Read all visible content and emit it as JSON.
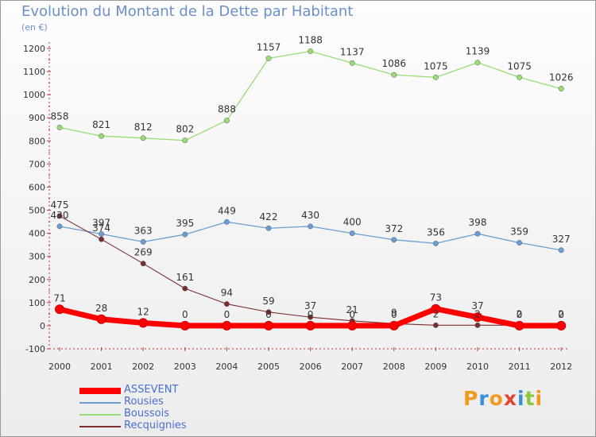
{
  "title": "Evolution du Montant de la Dette par Habitant",
  "subtitle": "(en €)",
  "logo": {
    "text": "Proxiti",
    "colors": [
      "#f29a1f",
      "#3a8fd8",
      "#f29a1f",
      "#e0462f",
      "#3a8fd8",
      "#8cc63f",
      "#f29a1f"
    ]
  },
  "chart_data": {
    "type": "line",
    "title": "Evolution du Montant de la Dette par Habitant",
    "subtitle": "(en €)",
    "xlabel": "",
    "ylabel": "",
    "x": [
      "2000",
      "2001",
      "2002",
      "2003",
      "2004",
      "2005",
      "2006",
      "2007",
      "2008",
      "2009",
      "2010",
      "2011",
      "2012"
    ],
    "ylim": [
      -100,
      1200
    ],
    "yticks": [
      -100,
      0,
      100,
      200,
      300,
      400,
      500,
      600,
      700,
      800,
      900,
      1000,
      1100,
      1200
    ],
    "grid": false,
    "legend": "bottom-left",
    "series": [
      {
        "name": "ASSEVENT",
        "color": "#ff0000",
        "width": 7,
        "values": [
          71,
          28,
          12,
          0,
          0,
          0,
          0,
          0,
          0,
          73,
          37,
          0,
          0
        ]
      },
      {
        "name": "Rousies",
        "color": "#6a9ed3",
        "width": 1.3,
        "values": [
          430,
          397,
          363,
          395,
          449,
          422,
          430,
          400,
          372,
          356,
          398,
          359,
          327
        ]
      },
      {
        "name": "Boussois",
        "color": "#99dd77",
        "width": 1.3,
        "values": [
          858,
          821,
          812,
          802,
          888,
          1157,
          1188,
          1137,
          1086,
          1075,
          1139,
          1075,
          1026
        ]
      },
      {
        "name": "Recquignies",
        "color": "#7a2e2e",
        "width": 1.1,
        "values": [
          475,
          374,
          269,
          161,
          94,
          59,
          37,
          21,
          9,
          2,
          2,
          2,
          2
        ]
      }
    ],
    "point_labels": [
      {
        "series": 0,
        "index": 0,
        "text": "71"
      },
      {
        "series": 0,
        "index": 1,
        "text": "28"
      },
      {
        "series": 0,
        "index": 2,
        "text": "12"
      },
      {
        "series": 0,
        "index": 3,
        "text": "0"
      },
      {
        "series": 0,
        "index": 4,
        "text": "0"
      },
      {
        "series": 0,
        "index": 5,
        "text": "0"
      },
      {
        "series": 0,
        "index": 6,
        "text": "0"
      },
      {
        "series": 0,
        "index": 7,
        "text": "0"
      },
      {
        "series": 0,
        "index": 8,
        "text": "0"
      },
      {
        "series": 0,
        "index": 9,
        "text": "73"
      },
      {
        "series": 0,
        "index": 10,
        "text": "37"
      },
      {
        "series": 0,
        "index": 11,
        "text": "0"
      },
      {
        "series": 0,
        "index": 12,
        "text": "0"
      },
      {
        "series": 1,
        "index": 0,
        "text": "430"
      },
      {
        "series": 1,
        "index": 1,
        "text": "397"
      },
      {
        "series": 1,
        "index": 2,
        "text": "363"
      },
      {
        "series": 1,
        "index": 3,
        "text": "395"
      },
      {
        "series": 1,
        "index": 4,
        "text": "449"
      },
      {
        "series": 1,
        "index": 5,
        "text": "422"
      },
      {
        "series": 1,
        "index": 6,
        "text": "430"
      },
      {
        "series": 1,
        "index": 7,
        "text": "400"
      },
      {
        "series": 1,
        "index": 8,
        "text": "372"
      },
      {
        "series": 1,
        "index": 9,
        "text": "356"
      },
      {
        "series": 1,
        "index": 10,
        "text": "398"
      },
      {
        "series": 1,
        "index": 11,
        "text": "359"
      },
      {
        "series": 1,
        "index": 12,
        "text": "327"
      },
      {
        "series": 2,
        "index": 0,
        "text": "858"
      },
      {
        "series": 2,
        "index": 1,
        "text": "821"
      },
      {
        "series": 2,
        "index": 2,
        "text": "812"
      },
      {
        "series": 2,
        "index": 3,
        "text": "802"
      },
      {
        "series": 2,
        "index": 4,
        "text": "888"
      },
      {
        "series": 2,
        "index": 5,
        "text": "1157"
      },
      {
        "series": 2,
        "index": 6,
        "text": "1188"
      },
      {
        "series": 2,
        "index": 7,
        "text": "1137"
      },
      {
        "series": 2,
        "index": 8,
        "text": "1086"
      },
      {
        "series": 2,
        "index": 9,
        "text": "1075"
      },
      {
        "series": 2,
        "index": 10,
        "text": "1139"
      },
      {
        "series": 2,
        "index": 11,
        "text": "1075"
      },
      {
        "series": 2,
        "index": 12,
        "text": "1026"
      },
      {
        "series": 3,
        "index": 0,
        "text": "475"
      },
      {
        "series": 3,
        "index": 1,
        "text": "374"
      },
      {
        "series": 3,
        "index": 2,
        "text": "269"
      },
      {
        "series": 3,
        "index": 3,
        "text": "161"
      },
      {
        "series": 3,
        "index": 4,
        "text": "94"
      },
      {
        "series": 3,
        "index": 5,
        "text": "59"
      },
      {
        "series": 3,
        "index": 6,
        "text": "37"
      },
      {
        "series": 3,
        "index": 7,
        "text": "21"
      },
      {
        "series": 3,
        "index": 8,
        "text": "9"
      },
      {
        "series": 3,
        "index": 9,
        "text": "2"
      },
      {
        "series": 3,
        "index": 10,
        "text": "2"
      },
      {
        "series": 3,
        "index": 11,
        "text": "2"
      },
      {
        "series": 3,
        "index": 12,
        "text": "2"
      }
    ]
  }
}
